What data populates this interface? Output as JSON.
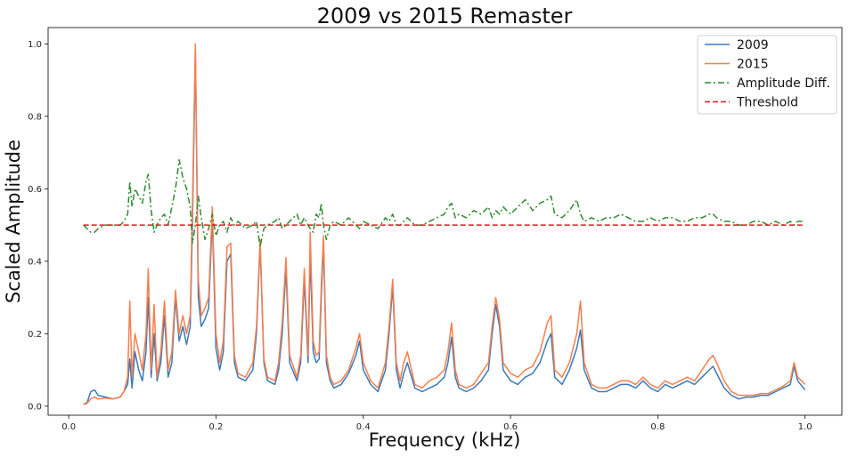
{
  "chart_data": {
    "type": "line",
    "title": "2009 vs 2015 Remaster",
    "xlabel": "Frequency (kHz)",
    "ylabel": "Scaled Amplitude",
    "xlim": [
      -0.028,
      1.05
    ],
    "ylim": [
      -0.025,
      1.045
    ],
    "xticks": [
      0.0,
      0.2,
      0.4,
      0.6,
      0.8,
      1.0
    ],
    "xtick_labels": [
      "0.0",
      "0.2",
      "0.4",
      "0.6",
      "0.8",
      "1.0"
    ],
    "yticks": [
      0.0,
      0.2,
      0.4,
      0.6,
      0.8,
      1.0
    ],
    "ytick_labels": [
      "0.0",
      "0.2",
      "0.4",
      "0.6",
      "0.8",
      "1.0"
    ],
    "grid": false,
    "legend": "top-right",
    "series": [
      {
        "name": "2009",
        "color": "#3a7ab8",
        "style": "solid",
        "x": [
          0.02,
          0.025,
          0.03,
          0.035,
          0.04,
          0.05,
          0.06,
          0.07,
          0.075,
          0.08,
          0.083,
          0.086,
          0.09,
          0.095,
          0.1,
          0.105,
          0.108,
          0.112,
          0.116,
          0.12,
          0.125,
          0.13,
          0.135,
          0.14,
          0.145,
          0.15,
          0.155,
          0.16,
          0.165,
          0.168,
          0.172,
          0.176,
          0.18,
          0.185,
          0.19,
          0.195,
          0.2,
          0.205,
          0.21,
          0.215,
          0.22,
          0.225,
          0.23,
          0.24,
          0.25,
          0.255,
          0.26,
          0.265,
          0.27,
          0.28,
          0.285,
          0.29,
          0.295,
          0.3,
          0.31,
          0.315,
          0.32,
          0.325,
          0.328,
          0.332,
          0.336,
          0.34,
          0.343,
          0.346,
          0.35,
          0.355,
          0.36,
          0.37,
          0.38,
          0.39,
          0.395,
          0.4,
          0.41,
          0.42,
          0.43,
          0.435,
          0.44,
          0.445,
          0.45,
          0.455,
          0.46,
          0.47,
          0.48,
          0.49,
          0.5,
          0.51,
          0.515,
          0.52,
          0.525,
          0.53,
          0.54,
          0.55,
          0.56,
          0.57,
          0.575,
          0.58,
          0.585,
          0.59,
          0.6,
          0.61,
          0.62,
          0.63,
          0.64,
          0.65,
          0.655,
          0.66,
          0.67,
          0.68,
          0.69,
          0.695,
          0.7,
          0.71,
          0.72,
          0.73,
          0.74,
          0.75,
          0.76,
          0.77,
          0.78,
          0.79,
          0.8,
          0.81,
          0.82,
          0.83,
          0.84,
          0.85,
          0.86,
          0.87,
          0.875,
          0.88,
          0.89,
          0.9,
          0.91,
          0.92,
          0.93,
          0.94,
          0.95,
          0.96,
          0.97,
          0.98,
          0.985,
          0.99,
          1.0
        ],
        "y": [
          0.005,
          0.01,
          0.04,
          0.045,
          0.03,
          0.025,
          0.02,
          0.025,
          0.04,
          0.06,
          0.13,
          0.05,
          0.15,
          0.1,
          0.07,
          0.15,
          0.3,
          0.08,
          0.2,
          0.07,
          0.12,
          0.25,
          0.08,
          0.12,
          0.3,
          0.18,
          0.22,
          0.17,
          0.22,
          0.5,
          0.98,
          0.3,
          0.22,
          0.24,
          0.27,
          0.52,
          0.16,
          0.1,
          0.15,
          0.4,
          0.42,
          0.12,
          0.08,
          0.07,
          0.1,
          0.2,
          0.45,
          0.12,
          0.07,
          0.06,
          0.1,
          0.2,
          0.38,
          0.12,
          0.07,
          0.12,
          0.35,
          0.12,
          0.42,
          0.15,
          0.12,
          0.13,
          0.3,
          0.45,
          0.12,
          0.07,
          0.05,
          0.06,
          0.09,
          0.14,
          0.18,
          0.1,
          0.06,
          0.04,
          0.1,
          0.2,
          0.33,
          0.1,
          0.05,
          0.09,
          0.12,
          0.05,
          0.04,
          0.05,
          0.06,
          0.08,
          0.12,
          0.19,
          0.08,
          0.05,
          0.04,
          0.05,
          0.07,
          0.1,
          0.2,
          0.28,
          0.22,
          0.1,
          0.07,
          0.06,
          0.08,
          0.09,
          0.12,
          0.18,
          0.2,
          0.08,
          0.06,
          0.1,
          0.16,
          0.21,
          0.1,
          0.05,
          0.04,
          0.04,
          0.05,
          0.06,
          0.06,
          0.05,
          0.07,
          0.05,
          0.04,
          0.06,
          0.05,
          0.06,
          0.07,
          0.06,
          0.08,
          0.1,
          0.11,
          0.09,
          0.05,
          0.03,
          0.02,
          0.025,
          0.025,
          0.03,
          0.03,
          0.04,
          0.05,
          0.06,
          0.11,
          0.07,
          0.045
        ]
      },
      {
        "name": "2015",
        "color": "#f57f4e",
        "style": "solid",
        "x": [
          0.02,
          0.025,
          0.03,
          0.035,
          0.04,
          0.05,
          0.06,
          0.07,
          0.075,
          0.08,
          0.083,
          0.086,
          0.09,
          0.095,
          0.1,
          0.105,
          0.108,
          0.112,
          0.116,
          0.12,
          0.125,
          0.13,
          0.135,
          0.14,
          0.145,
          0.15,
          0.155,
          0.16,
          0.165,
          0.168,
          0.172,
          0.176,
          0.18,
          0.185,
          0.19,
          0.195,
          0.2,
          0.205,
          0.21,
          0.215,
          0.22,
          0.225,
          0.23,
          0.24,
          0.25,
          0.255,
          0.26,
          0.265,
          0.27,
          0.28,
          0.285,
          0.29,
          0.295,
          0.3,
          0.31,
          0.315,
          0.32,
          0.325,
          0.328,
          0.332,
          0.336,
          0.34,
          0.343,
          0.346,
          0.35,
          0.355,
          0.36,
          0.37,
          0.38,
          0.39,
          0.395,
          0.4,
          0.41,
          0.42,
          0.43,
          0.435,
          0.44,
          0.445,
          0.45,
          0.455,
          0.46,
          0.47,
          0.48,
          0.49,
          0.5,
          0.51,
          0.515,
          0.52,
          0.525,
          0.53,
          0.54,
          0.55,
          0.56,
          0.57,
          0.575,
          0.58,
          0.585,
          0.59,
          0.6,
          0.61,
          0.62,
          0.63,
          0.64,
          0.65,
          0.655,
          0.66,
          0.67,
          0.68,
          0.69,
          0.695,
          0.7,
          0.71,
          0.72,
          0.73,
          0.74,
          0.75,
          0.76,
          0.77,
          0.78,
          0.79,
          0.8,
          0.81,
          0.82,
          0.83,
          0.84,
          0.85,
          0.86,
          0.87,
          0.875,
          0.88,
          0.89,
          0.9,
          0.91,
          0.92,
          0.93,
          0.94,
          0.95,
          0.96,
          0.97,
          0.98,
          0.985,
          0.99,
          1.0
        ],
        "y": [
          0.005,
          0.008,
          0.02,
          0.025,
          0.02,
          0.022,
          0.02,
          0.025,
          0.04,
          0.08,
          0.29,
          0.08,
          0.2,
          0.15,
          0.1,
          0.2,
          0.38,
          0.1,
          0.28,
          0.08,
          0.15,
          0.29,
          0.1,
          0.15,
          0.32,
          0.2,
          0.25,
          0.2,
          0.25,
          0.55,
          1.0,
          0.35,
          0.25,
          0.27,
          0.3,
          0.55,
          0.2,
          0.12,
          0.18,
          0.44,
          0.45,
          0.14,
          0.09,
          0.08,
          0.12,
          0.22,
          0.46,
          0.13,
          0.08,
          0.07,
          0.12,
          0.23,
          0.41,
          0.14,
          0.08,
          0.14,
          0.38,
          0.14,
          0.48,
          0.18,
          0.14,
          0.15,
          0.33,
          0.47,
          0.14,
          0.08,
          0.06,
          0.07,
          0.1,
          0.16,
          0.2,
          0.12,
          0.07,
          0.05,
          0.12,
          0.22,
          0.35,
          0.12,
          0.07,
          0.12,
          0.15,
          0.06,
          0.05,
          0.07,
          0.08,
          0.1,
          0.15,
          0.23,
          0.1,
          0.06,
          0.05,
          0.06,
          0.09,
          0.12,
          0.22,
          0.3,
          0.24,
          0.12,
          0.09,
          0.08,
          0.1,
          0.11,
          0.15,
          0.23,
          0.25,
          0.1,
          0.08,
          0.12,
          0.2,
          0.29,
          0.12,
          0.06,
          0.05,
          0.05,
          0.06,
          0.07,
          0.07,
          0.06,
          0.08,
          0.06,
          0.05,
          0.07,
          0.06,
          0.07,
          0.08,
          0.07,
          0.1,
          0.13,
          0.14,
          0.12,
          0.07,
          0.04,
          0.03,
          0.03,
          0.03,
          0.035,
          0.035,
          0.045,
          0.055,
          0.07,
          0.12,
          0.08,
          0.06
        ]
      },
      {
        "name": "Amplitude Diff.",
        "color": "#2e8b2e",
        "style": "dashdot",
        "x": [
          0.02,
          0.025,
          0.03,
          0.035,
          0.04,
          0.05,
          0.06,
          0.07,
          0.075,
          0.08,
          0.083,
          0.086,
          0.09,
          0.095,
          0.1,
          0.105,
          0.108,
          0.112,
          0.116,
          0.12,
          0.125,
          0.13,
          0.135,
          0.14,
          0.145,
          0.15,
          0.155,
          0.16,
          0.165,
          0.168,
          0.172,
          0.176,
          0.18,
          0.185,
          0.19,
          0.195,
          0.2,
          0.205,
          0.21,
          0.215,
          0.22,
          0.225,
          0.23,
          0.24,
          0.25,
          0.255,
          0.26,
          0.265,
          0.27,
          0.28,
          0.285,
          0.29,
          0.295,
          0.3,
          0.31,
          0.315,
          0.32,
          0.325,
          0.328,
          0.332,
          0.336,
          0.34,
          0.343,
          0.346,
          0.35,
          0.355,
          0.36,
          0.37,
          0.38,
          0.39,
          0.395,
          0.4,
          0.41,
          0.42,
          0.43,
          0.435,
          0.44,
          0.445,
          0.45,
          0.455,
          0.46,
          0.47,
          0.48,
          0.49,
          0.5,
          0.51,
          0.515,
          0.52,
          0.525,
          0.53,
          0.54,
          0.55,
          0.56,
          0.57,
          0.575,
          0.58,
          0.585,
          0.59,
          0.6,
          0.61,
          0.62,
          0.63,
          0.64,
          0.65,
          0.655,
          0.66,
          0.67,
          0.68,
          0.69,
          0.695,
          0.7,
          0.71,
          0.72,
          0.73,
          0.74,
          0.75,
          0.76,
          0.77,
          0.78,
          0.79,
          0.8,
          0.81,
          0.82,
          0.83,
          0.84,
          0.85,
          0.86,
          0.87,
          0.875,
          0.88,
          0.89,
          0.9,
          0.91,
          0.92,
          0.93,
          0.94,
          0.95,
          0.96,
          0.97,
          0.98,
          0.985,
          0.99,
          1.0
        ],
        "y": [
          0.5,
          0.49,
          0.48,
          0.48,
          0.49,
          0.5,
          0.5,
          0.5,
          0.51,
          0.53,
          0.62,
          0.55,
          0.6,
          0.58,
          0.56,
          0.62,
          0.64,
          0.54,
          0.48,
          0.5,
          0.52,
          0.53,
          0.5,
          0.55,
          0.6,
          0.68,
          0.63,
          0.6,
          0.55,
          0.45,
          0.5,
          0.58,
          0.52,
          0.46,
          0.49,
          0.53,
          0.47,
          0.5,
          0.51,
          0.48,
          0.52,
          0.5,
          0.51,
          0.49,
          0.5,
          0.51,
          0.44,
          0.49,
          0.5,
          0.51,
          0.52,
          0.49,
          0.5,
          0.51,
          0.53,
          0.5,
          0.52,
          0.5,
          0.49,
          0.48,
          0.53,
          0.52,
          0.56,
          0.5,
          0.46,
          0.5,
          0.51,
          0.5,
          0.52,
          0.5,
          0.49,
          0.51,
          0.5,
          0.49,
          0.52,
          0.51,
          0.53,
          0.5,
          0.5,
          0.51,
          0.52,
          0.5,
          0.5,
          0.51,
          0.52,
          0.53,
          0.55,
          0.56,
          0.52,
          0.53,
          0.52,
          0.54,
          0.53,
          0.55,
          0.52,
          0.54,
          0.53,
          0.55,
          0.53,
          0.55,
          0.57,
          0.54,
          0.56,
          0.57,
          0.58,
          0.53,
          0.52,
          0.54,
          0.57,
          0.53,
          0.51,
          0.52,
          0.51,
          0.52,
          0.52,
          0.53,
          0.52,
          0.51,
          0.51,
          0.52,
          0.51,
          0.52,
          0.52,
          0.51,
          0.51,
          0.52,
          0.52,
          0.53,
          0.53,
          0.52,
          0.51,
          0.51,
          0.5,
          0.5,
          0.51,
          0.51,
          0.5,
          0.51,
          0.5,
          0.51,
          0.5,
          0.51,
          0.51
        ]
      },
      {
        "name": "Threshold",
        "color": "#e31a1c",
        "style": "dashed",
        "x": [
          0.02,
          1.0
        ],
        "y": [
          0.5,
          0.5
        ]
      }
    ]
  }
}
